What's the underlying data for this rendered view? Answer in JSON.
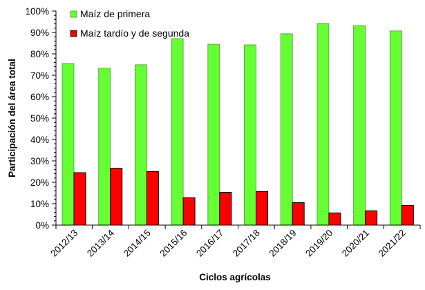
{
  "chart_data": {
    "type": "bar",
    "title": "",
    "xlabel": "Ciclos agrícolas",
    "ylabel": "Participación del área total",
    "ylim": [
      0,
      100
    ],
    "yticks": [
      "0%",
      "10%",
      "20%",
      "30%",
      "40%",
      "50%",
      "60%",
      "70%",
      "80%",
      "90%",
      "100%"
    ],
    "categories": [
      "2012/13",
      "2013/14",
      "2014/15",
      "2015/16",
      "2016/17",
      "2017/18",
      "2018/19",
      "2019/20",
      "2020/21",
      "2021/22"
    ],
    "series": [
      {
        "name": "Maíz de primera",
        "color": "#66ff33",
        "values": [
          75.5,
          73.3,
          74.9,
          87.1,
          84.5,
          84.2,
          89.4,
          94.2,
          93.2,
          90.7
        ]
      },
      {
        "name": "Maíz tardío y de segunda",
        "color": "#ff0000",
        "values": [
          24.5,
          26.6,
          25.0,
          12.8,
          15.3,
          15.7,
          10.5,
          5.7,
          6.7,
          9.2
        ]
      }
    ],
    "legend": "top-left",
    "grid": false
  }
}
